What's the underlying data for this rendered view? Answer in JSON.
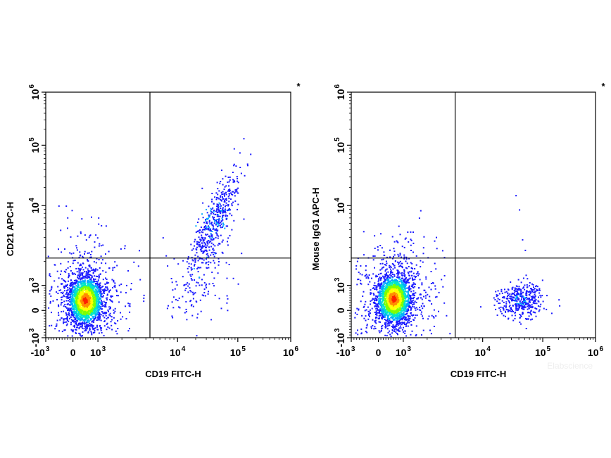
{
  "chart_data": [
    {
      "type": "scatter",
      "subtype": "flow-cytometry-density-dot-plot",
      "xlabel": "CD19 FITC-H",
      "ylabel": "CD21 APC-H",
      "x_scale": "biexponential",
      "y_scale": "biexponential",
      "xlim": [
        -1000,
        1000000
      ],
      "ylim": [
        -1000,
        1000000
      ],
      "x_ticks": [
        {
          "base": "-10",
          "exp": "3"
        },
        {
          "base": "0",
          "exp": ""
        },
        {
          "base": "10",
          "exp": "3"
        },
        {
          "base": "10",
          "exp": "4"
        },
        {
          "base": "10",
          "exp": "5"
        },
        {
          "base": "10",
          "exp": "6"
        }
      ],
      "y_ticks": [
        {
          "base": "-10",
          "exp": "3"
        },
        {
          "base": "0",
          "exp": ""
        },
        {
          "base": "10",
          "exp": "3"
        },
        {
          "base": "10",
          "exp": "4"
        },
        {
          "base": "10",
          "exp": "5"
        },
        {
          "base": "10",
          "exp": "6"
        }
      ],
      "gate": {
        "x": 4500,
        "y": 2200
      },
      "corner_mark": "*",
      "populations": [
        {
          "x_center": 480,
          "y_center": 420,
          "count": 2600,
          "shape": "dense-core"
        },
        {
          "x_center": 40000,
          "y_center": 6500,
          "count": 560,
          "shape": "diagonal-positive"
        },
        {
          "x_center": 25000,
          "y_center": 900,
          "count": 60,
          "shape": "sparse"
        }
      ],
      "density_colors": [
        "#1a1aff",
        "#00aaff",
        "#00e6c8",
        "#7fff00",
        "#ffff00",
        "#ff8c00",
        "#ff2000"
      ]
    },
    {
      "type": "scatter",
      "subtype": "flow-cytometry-density-dot-plot",
      "xlabel": "CD19 FITC-H",
      "ylabel": "Mouse IgG1 APC-H",
      "x_scale": "biexponential",
      "y_scale": "biexponential",
      "xlim": [
        -1000,
        1000000
      ],
      "ylim": [
        -1000,
        1000000
      ],
      "x_ticks": [
        {
          "base": "-10",
          "exp": "3"
        },
        {
          "base": "0",
          "exp": ""
        },
        {
          "base": "10",
          "exp": "3"
        },
        {
          "base": "10",
          "exp": "4"
        },
        {
          "base": "10",
          "exp": "5"
        },
        {
          "base": "10",
          "exp": "6"
        }
      ],
      "y_ticks": [
        {
          "base": "-10",
          "exp": "3"
        },
        {
          "base": "0",
          "exp": ""
        },
        {
          "base": "10",
          "exp": "3"
        },
        {
          "base": "10",
          "exp": "4"
        },
        {
          "base": "10",
          "exp": "5"
        },
        {
          "base": "10",
          "exp": "6"
        }
      ],
      "gate": {
        "x": 4500,
        "y": 2200
      },
      "corner_mark": "*",
      "populations": [
        {
          "x_center": 600,
          "y_center": 480,
          "count": 2600,
          "shape": "dense-core"
        },
        {
          "x_center": 42000,
          "y_center": 450,
          "count": 420,
          "shape": "negative-cluster"
        }
      ],
      "density_colors": [
        "#1a1aff",
        "#00aaff",
        "#00e6c8",
        "#7fff00",
        "#ffff00",
        "#ff8c00",
        "#ff2000"
      ]
    }
  ],
  "watermark": "Elabscience"
}
